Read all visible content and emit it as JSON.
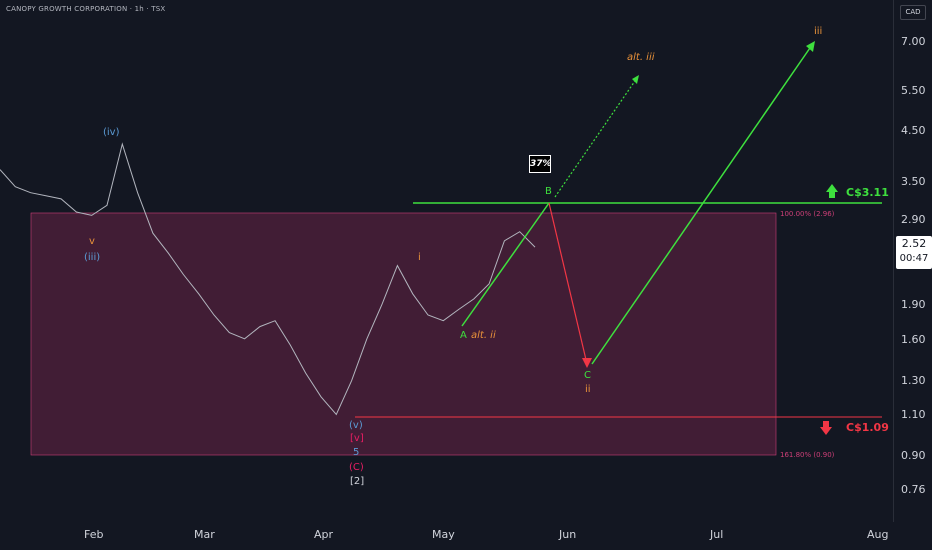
{
  "header": {
    "title": "CANOPY GROWTH CORPORATION · 1h · TSX",
    "currency": "CAD"
  },
  "price_axis": [
    "7.00",
    "5.50",
    "4.50",
    "3.50",
    "2.90",
    "1.90",
    "1.60",
    "1.30",
    "1.10",
    "0.90",
    "0.76"
  ],
  "time_axis": [
    "Feb",
    "Mar",
    "Apr",
    "May",
    "Jun",
    "Jul",
    "Aug"
  ],
  "current_price": {
    "value": "2.52",
    "countdown": "00:47"
  },
  "levels": {
    "upper": "C$3.11",
    "lower": "C$1.09"
  },
  "fib": {
    "upper": "100.00% (2.96)",
    "lower": "161.80% (0.90)"
  },
  "probability": "37%",
  "wave_labels": {
    "iv": "(iv)",
    "v_small": "v",
    "iii_paren": "(iii)",
    "i": "i",
    "A": "A",
    "alt_ii": "alt. ii",
    "B": "B",
    "C": "C",
    "ii": "ii",
    "alt_iii": "alt. iii",
    "iii": "iii",
    "v_paren": "(v)",
    "v_bracket": "[v]",
    "five": "5",
    "C_paren": "(C)",
    "two_bracket": "[2]"
  },
  "colors": {
    "background": "#131722",
    "price": "#b2b5be",
    "zone": "#4a1f38",
    "zone_border": "#cc3f77",
    "green": "#3ee03e",
    "red": "#f23645",
    "orange": "#e8913a",
    "blue": "#5b9bd5"
  },
  "chart_data": {
    "type": "line",
    "title": "CANOPY GROWTH CORPORATION · 1h · TSX",
    "xlabel": "",
    "ylabel": "CAD",
    "y_scale": "log",
    "ylim": [
      0.7,
      8.2
    ],
    "x_ticks": [
      "Feb",
      "Mar",
      "Apr",
      "May",
      "Jun",
      "Jul",
      "Aug"
    ],
    "series": [
      {
        "values": [
          3.7,
          3.4,
          3.3,
          3.25,
          3.2,
          3.0,
          2.95,
          3.1,
          4.2,
          3.3,
          2.7,
          2.45,
          2.2,
          2.0,
          1.8,
          1.65,
          1.6,
          1.7,
          1.75,
          1.55,
          1.35,
          1.2,
          1.1,
          1.3,
          1.6,
          1.9,
          2.3,
          2.0,
          1.8,
          1.75,
          1.85,
          1.95,
          2.1,
          2.6,
          2.72,
          2.52
        ]
      }
    ],
    "projections": [
      {
        "name": "",
        "points": [
          2.96,
          1.4,
          7.0
        ]
      }
    ],
    "annotations": [
      "C$3.11",
      "C$1.09",
      "100.00% (2.96)",
      "161.80% (0.90)",
      "37%"
    ]
  }
}
